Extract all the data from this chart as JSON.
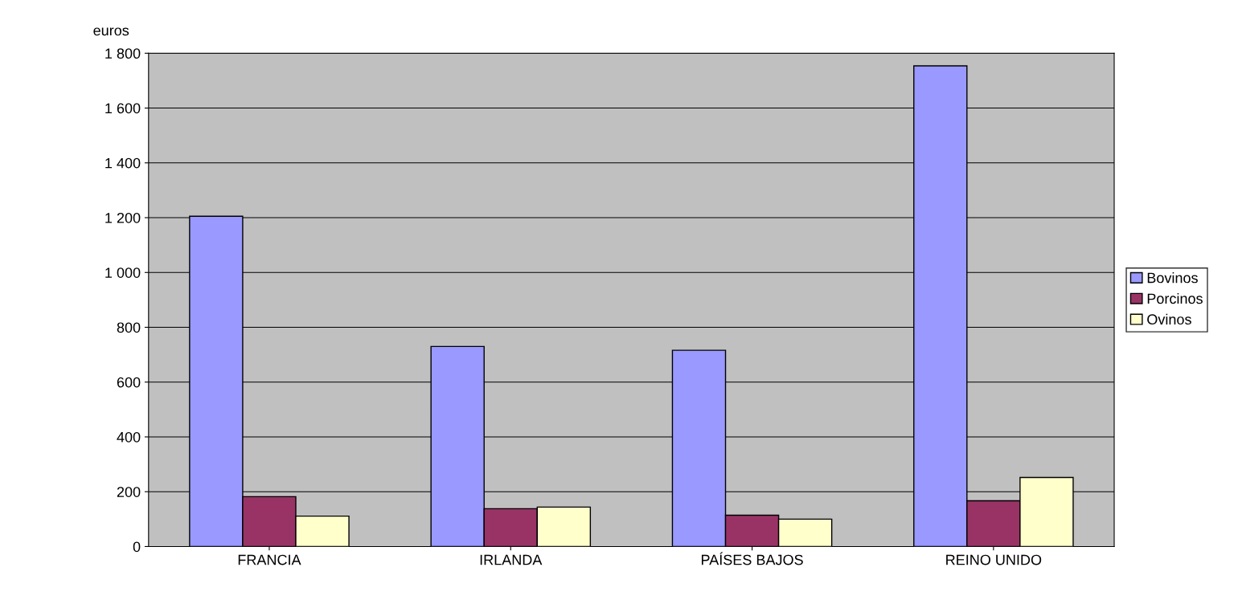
{
  "chart_data": {
    "type": "bar",
    "ylabel": "euros",
    "categories": [
      "FRANCIA",
      "IRLANDA",
      "PAÍSES BAJOS",
      "REINO UNIDO"
    ],
    "series": [
      {
        "name": "Bovinos",
        "color": "#9999ff",
        "values": [
          1205,
          730,
          716,
          1754
        ]
      },
      {
        "name": "Porcinos",
        "color": "#993366",
        "values": [
          182,
          138,
          114,
          167
        ]
      },
      {
        "name": "Ovinos",
        "color": "#ffffcc",
        "values": [
          111,
          144,
          100,
          252
        ]
      }
    ],
    "ylim": [
      0,
      1800
    ],
    "yticks": [
      0,
      {
        "value": 200,
        "label": "200"
      },
      {
        "value": 400,
        "label": "400"
      },
      {
        "value": 600,
        "label": "600"
      },
      {
        "value": 800,
        "label": "800"
      },
      {
        "value": 1000,
        "label": "1 000"
      },
      {
        "value": 1200,
        "label": "1 200"
      },
      {
        "value": 1400,
        "label": "1 400"
      },
      {
        "value": 1600,
        "label": "1 600"
      },
      {
        "value": 1800,
        "label": "1 800"
      }
    ],
    "grid": "y",
    "legend": "right"
  }
}
